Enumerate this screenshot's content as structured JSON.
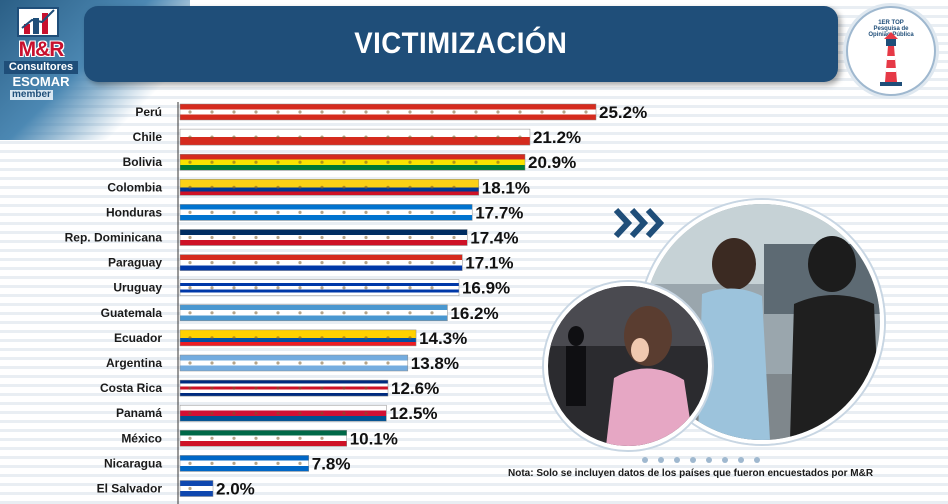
{
  "header": {
    "title": "VICTIMIZACIÓN",
    "logo_main": "M&R",
    "logo_sub": "Consultores",
    "logo_esomar": "ESOMAR",
    "logo_member": "member"
  },
  "badge": {
    "line1": "1ER TOP",
    "line2": "Pesquisa de",
    "line3": "Opinião Pública"
  },
  "chart_data": {
    "type": "bar",
    "orientation": "horizontal",
    "title": "VICTIMIZACIÓN",
    "unit": "%",
    "xlim": [
      0,
      25.2
    ],
    "categories": [
      "Perú",
      "Chile",
      "Bolivia",
      "Colombia",
      "Honduras",
      "Rep. Dominicana",
      "Paraguay",
      "Uruguay",
      "Guatemala",
      "Ecuador",
      "Argentina",
      "Costa Rica",
      "Panamá",
      "México",
      "Nicaragua",
      "El Salvador"
    ],
    "values": [
      25.2,
      21.2,
      20.9,
      18.1,
      17.7,
      17.4,
      17.1,
      16.9,
      16.2,
      14.3,
      13.8,
      12.6,
      12.5,
      10.1,
      7.8,
      2.0
    ],
    "value_labels": [
      "25.2%",
      "21.2%",
      "20.9%",
      "18.1%",
      "17.7%",
      "17.4%",
      "17.1%",
      "16.9%",
      "16.2%",
      "14.3%",
      "13.8%",
      "12.6%",
      "12.5%",
      "10.1%",
      "7.8%",
      "2.0%"
    ],
    "bar_flags": [
      [
        "#d52b1e",
        "#ffffff",
        "#d52b1e"
      ],
      [
        "#ffffff",
        "#d52b1e"
      ],
      [
        "#d52b1e",
        "#f9e300",
        "#007934"
      ],
      [
        "#fcd116",
        "#fcd116",
        "#003893",
        "#ce1126"
      ],
      [
        "#0073cf",
        "#ffffff",
        "#0073cf"
      ],
      [
        "#002d62",
        "#ffffff",
        "#ce1126"
      ],
      [
        "#d52b1e",
        "#ffffff",
        "#0038a8"
      ],
      [
        "#ffffff",
        "#0038a8",
        "#ffffff",
        "#0038a8",
        "#ffffff"
      ],
      [
        "#4997d0",
        "#ffffff",
        "#4997d0"
      ],
      [
        "#ffd100",
        "#ffd100",
        "#034ea2",
        "#ed1c24"
      ],
      [
        "#74acdf",
        "#ffffff",
        "#74acdf"
      ],
      [
        "#002b7f",
        "#ffffff",
        "#ce1126",
        "#ffffff",
        "#002b7f"
      ],
      [
        "#ffffff",
        "#d21034",
        "#005293"
      ],
      [
        "#006847",
        "#ffffff",
        "#ce1126"
      ],
      [
        "#0067c6",
        "#ffffff",
        "#0067c6"
      ],
      [
        "#0f47af",
        "#ffffff",
        "#0f47af"
      ]
    ],
    "grid": false,
    "legend": "none"
  },
  "footer": {
    "note": "Nota: Solo se incluyen datos de los países que fueron encuestados por M&R"
  },
  "colors": {
    "title_bg": "#1f4e79",
    "accent": "#2b5f86",
    "brand_red": "#c8102e"
  }
}
